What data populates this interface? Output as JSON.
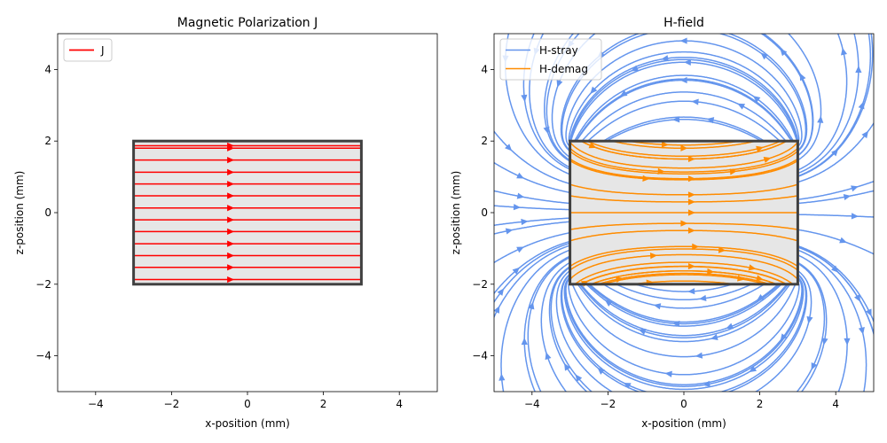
{
  "colors": {
    "j": "#ff0000",
    "stray": "#6495ed",
    "demag": "#ff8c00",
    "magnet_fill": "#e6e6e6",
    "magnet_edge": "#404040"
  },
  "chart_data": [
    {
      "type": "line",
      "title": "Magnetic Polarization J",
      "xlabel": "x-position (mm)",
      "ylabel": "z-position (mm)",
      "xlim": [
        -5,
        5
      ],
      "ylim": [
        -5,
        5
      ],
      "xticks": [
        -4,
        -2,
        0,
        2,
        4
      ],
      "yticks": [
        -4,
        -2,
        0,
        2,
        4
      ],
      "xtick_labels": [
        "−4",
        "−2",
        "0",
        "2",
        "4"
      ],
      "ytick_labels": [
        "−4",
        "−2",
        "0",
        "2",
        "4"
      ],
      "magnet": {
        "x": [
          -3,
          3
        ],
        "z": [
          -2,
          2
        ]
      },
      "series": [
        {
          "name": "J",
          "color": "#ff0000",
          "line_x": [
            -3,
            3
          ],
          "z_levels": [
            -1.87,
            -1.53,
            -1.2,
            -0.87,
            -0.53,
            -0.2,
            0.13,
            0.47,
            0.8,
            1.13,
            1.47,
            1.8,
            1.87
          ],
          "arrow_x": -0.45,
          "direction": "+x"
        }
      ],
      "legend": {
        "position": "upper-left",
        "entries": [
          "J"
        ]
      },
      "grid": false
    },
    {
      "type": "line",
      "title": "H-field",
      "xlabel": "x-position (mm)",
      "ylabel": "z-position (mm)",
      "xlim": [
        -5,
        5
      ],
      "ylim": [
        -5,
        5
      ],
      "xticks": [
        -4,
        -2,
        0,
        2,
        4
      ],
      "yticks": [
        -4,
        -2,
        0,
        2,
        4
      ],
      "xtick_labels": [
        "−4",
        "−2",
        "0",
        "2",
        "4"
      ],
      "ytick_labels": [
        "−4",
        "−2",
        "0",
        "2",
        "4"
      ],
      "magnet": {
        "x": [
          -3,
          3
        ],
        "z": [
          -2,
          2
        ]
      },
      "series": [
        {
          "name": "H-stray",
          "color": "#6495ed",
          "description": "streamlines outside magnet"
        },
        {
          "name": "H-demag",
          "color": "#ff8c00",
          "description": "streamlines inside magnet"
        }
      ],
      "legend": {
        "position": "upper-left",
        "entries": [
          "H-stray",
          "H-demag"
        ]
      },
      "grid": false
    }
  ]
}
